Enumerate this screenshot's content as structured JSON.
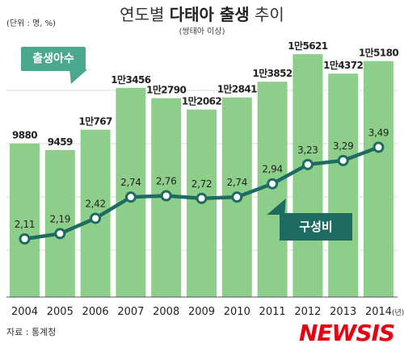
{
  "header": {
    "unit_label": "(단위 : 명, %)",
    "title_part1": "연도별 ",
    "title_part2": "다태아 출생",
    "title_part3": " 추이",
    "subtitle": "(쌍태아 이상)"
  },
  "labels": {
    "bar_series": "출생아수",
    "line_series": "구성비"
  },
  "footer": {
    "source": "자료 : 통계청",
    "logo": "NEWSIS"
  },
  "colors": {
    "bar": "#8dcf8a",
    "line": "#1e6b62",
    "marker_fill": "#ffffff",
    "grid": "#b8bdb8",
    "bar_tag": "#4aa88e",
    "logo": "#e60012"
  },
  "chart_data": {
    "type": "bar",
    "categories": [
      "2004",
      "2005",
      "2006",
      "2007",
      "2008",
      "2009",
      "2010",
      "2011",
      "2012",
      "2013",
      "2014"
    ],
    "x_unit": "(년)",
    "series": [
      {
        "name": "출생아수",
        "type": "bar",
        "values": [
          9880,
          9459,
          10767,
          13456,
          12790,
          12062,
          12841,
          13852,
          15621,
          14372,
          15180
        ],
        "labels": [
          "9880",
          "9459",
          "1만767",
          "1만3456",
          "1만2790",
          "1만2062",
          "1만2841",
          "1만3852",
          "1만5621",
          "1만4372",
          "1만5180"
        ]
      },
      {
        "name": "구성비",
        "type": "line",
        "values": [
          2.11,
          2.19,
          2.42,
          2.74,
          2.76,
          2.72,
          2.74,
          2.94,
          3.23,
          3.29,
          3.49
        ],
        "labels": [
          "2,11",
          "2,19",
          "2,42",
          "2,74",
          "2,76",
          "2,72",
          "2,74",
          "2,94",
          "3,23",
          "3,29",
          "3,49"
        ]
      }
    ],
    "grid": true
  }
}
